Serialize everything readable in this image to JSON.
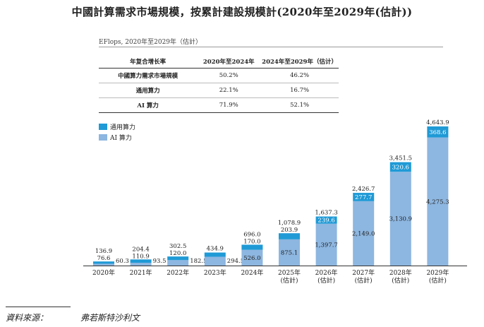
{
  "title": "中國計算需求市場規模，按累計建設規模計(2020年至2029年(估計))",
  "unit_note": "EFlops, 2020年至2029年（估計）",
  "cagr_table": {
    "headers": [
      "年复合增长率",
      "2020年至2024年",
      "2024年至2029年（估计）"
    ],
    "rows": [
      {
        "label": "中國算力需求市場規模",
        "v1": "50.2%",
        "v2": "46.2%"
      },
      {
        "label": "通用算力",
        "v1": "22.1%",
        "v2": "16.7%"
      },
      {
        "label": "AI 算力",
        "v1": "71.9%",
        "v2": "52.1%"
      }
    ]
  },
  "legend": [
    {
      "label": "通用算力",
      "color": "#1f9ad6"
    },
    {
      "label": "AI 算力",
      "color": "#8db6e0"
    }
  ],
  "chart_data": {
    "type": "bar",
    "stacked": true,
    "categories": [
      "2020年",
      "2021年",
      "2022年",
      "2023年",
      "2024年",
      "2025年\n(估計)",
      "2026年\n(估計)",
      "2027年\n(估計)",
      "2028年\n(估計)",
      "2029年\n(估計)"
    ],
    "totals": [
      "136.9",
      "204.4",
      "302.5",
      "434.9",
      "696.0",
      "1,078.9",
      "1,637.3",
      "2,426.7",
      "3,451.5",
      "4,643.9"
    ],
    "series": [
      {
        "name": "AI 算力",
        "color": "#8db6e0",
        "values": [
          60.3,
          93.5,
          182.5,
          294.5,
          526.0,
          875.1,
          1397.7,
          2149.0,
          3130.9,
          4275.3
        ],
        "labels": [
          "60.3",
          "93.5",
          "182.5",
          "294.5",
          "526.0",
          "875.1",
          "1,397.7",
          "2,149.0",
          "3,130.9",
          "4,275.3"
        ]
      },
      {
        "name": "通用算力",
        "color": "#1f9ad6",
        "values": [
          76.6,
          110.9,
          120.0,
          140.4,
          170.0,
          203.9,
          239.6,
          277.7,
          320.6,
          368.6
        ],
        "labels": [
          "76.6",
          "110.9",
          "120.0",
          "",
          "170.0",
          "203.9",
          "239.6",
          "277.7",
          "320.6",
          "368.6"
        ]
      }
    ]
  },
  "source": {
    "label": "資料來源：",
    "value": "弗若斯特沙利文"
  }
}
